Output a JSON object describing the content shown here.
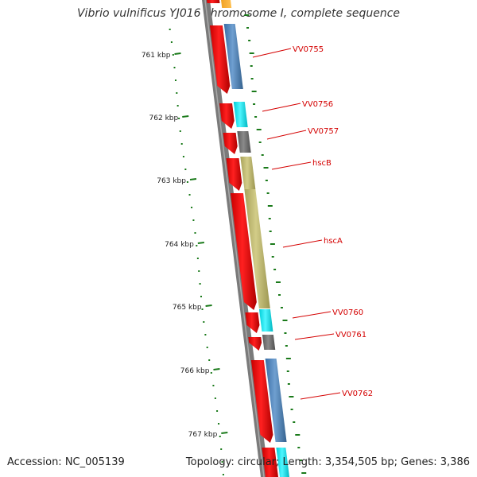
{
  "title": "Vibrio vulnificus YJ016 chromosome I, complete sequence",
  "footer": {
    "accession": "Accession: NC_005139",
    "stats": "Topology: circular; Length: 3,354,505 bp; Genes: 3,386"
  },
  "colors": {
    "background": "#ffffff",
    "backbone": "#7a7a7a",
    "cds": "#ee1111",
    "gc_skew": "#1a7a1a",
    "label": "#d40000",
    "blue_gene": "#4a80b8",
    "cyan_gene": "#00e5ee",
    "grey_gene": "#6e6e6e",
    "khaki_gene": "#bdb76b"
  },
  "ticks": [
    {
      "label": "761 kbp"
    },
    {
      "label": "762 kbp"
    },
    {
      "label": "763 kbp"
    },
    {
      "label": "764 kbp"
    },
    {
      "label": "765 kbp"
    },
    {
      "label": "766 kbp"
    },
    {
      "label": "767 kbp"
    }
  ],
  "genes": [
    {
      "name": "VV0755",
      "cog_color": "blue"
    },
    {
      "name": "VV0756",
      "cog_color": "cyan"
    },
    {
      "name": "VV0757",
      "cog_color": "grey"
    },
    {
      "name": "hscB",
      "cog_color": "khaki"
    },
    {
      "name": "hscA",
      "cog_color": "khaki"
    },
    {
      "name": "VV0760",
      "cog_color": "cyan"
    },
    {
      "name": "VV0761",
      "cog_color": "grey"
    },
    {
      "name": "VV0762",
      "cog_color": "blue"
    }
  ]
}
